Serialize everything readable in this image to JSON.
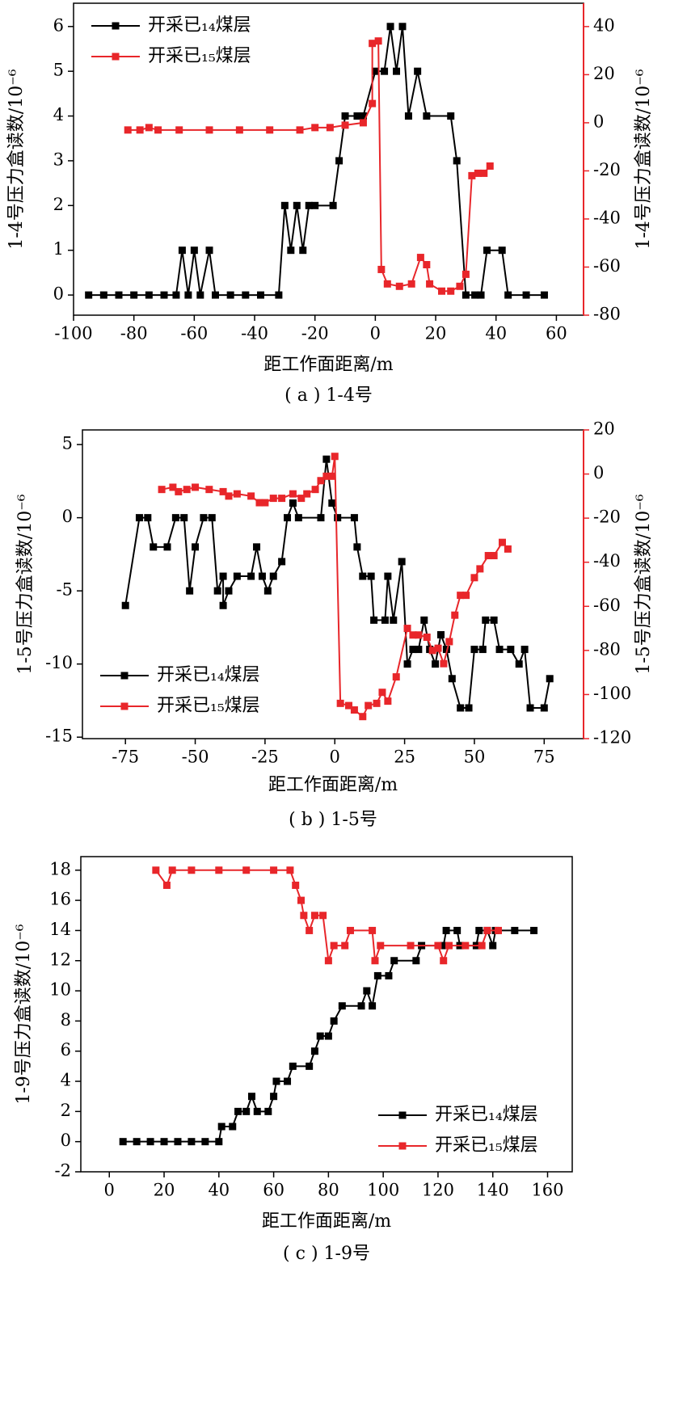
{
  "chart_data": [
    {
      "type": "line",
      "caption": "( a ) 1-4号",
      "xlabel": "距工作面距离/m",
      "ylabel": "1-4号压力盒读数/10⁻⁶",
      "y2label": "1-4号压力盒读数/10⁻⁶",
      "xlim": [
        -100,
        69
      ],
      "xticks": [
        -100,
        -80,
        -60,
        -40,
        -20,
        0,
        20,
        40,
        60
      ],
      "ylim": [
        -0.45,
        6.52
      ],
      "yticks": [
        0,
        1,
        2,
        3,
        4,
        5,
        6
      ],
      "y2lim": [
        -80,
        49.7
      ],
      "y2ticks": [
        -80,
        -60,
        -40,
        -20,
        0,
        20,
        40
      ],
      "y2color": "#e8262a",
      "legend": "upper left",
      "series": [
        {
          "name": "开采已₁₄煤层",
          "color": "#000000",
          "x": [
            -95,
            -90,
            -85,
            -80,
            -75,
            -70,
            -66,
            -64,
            -62,
            -60,
            -58,
            -55,
            -53,
            -48,
            -43,
            -38,
            -32,
            -30,
            -28,
            -26,
            -24,
            -22,
            -20,
            -14,
            -12,
            -10,
            -6,
            -4,
            0,
            3,
            5,
            7,
            9,
            11,
            14,
            17,
            25,
            27,
            30,
            33,
            35,
            37,
            42,
            44,
            50,
            56
          ],
          "values": [
            0,
            0,
            0,
            0,
            0,
            0,
            0,
            1,
            0,
            1,
            0,
            1,
            0,
            0,
            0,
            0,
            0,
            2,
            1,
            2,
            1,
            2,
            2,
            2,
            3,
            4,
            4,
            4,
            5,
            5,
            6,
            5,
            6,
            4,
            5,
            4,
            4,
            3,
            0,
            0,
            0,
            1,
            1,
            0,
            0,
            0
          ]
        },
        {
          "name": "开采已₁₅煤层",
          "color": "#e8262a",
          "axis": "y2",
          "x": [
            -82,
            -78,
            -75,
            -72,
            -65,
            -55,
            -45,
            -35,
            -25,
            -20,
            -15,
            -10,
            -4,
            -1,
            -1,
            1,
            2,
            4,
            8,
            12,
            15,
            17,
            18,
            22,
            25,
            28,
            30,
            32,
            34,
            36,
            38
          ],
          "values": [
            -3,
            -3,
            -2,
            -3,
            -3,
            -3,
            -3,
            -3,
            -3,
            -2,
            -2,
            -1,
            0,
            8,
            33,
            34,
            -61,
            -67,
            -68,
            -67,
            -56,
            -59,
            -67,
            -70,
            -70,
            -68,
            -63,
            -22,
            -21,
            -21,
            -18
          ]
        }
      ]
    },
    {
      "type": "line",
      "caption": "( b ) 1-5号",
      "xlabel": "距工作面距离/m",
      "ylabel": "1-5号压力盒读数/10⁻⁶",
      "y2label": "1-5号压力盒读数/10⁻⁶",
      "xlim": [
        -90.4,
        89.1
      ],
      "xticks": [
        -75,
        -50,
        -25,
        0,
        25,
        50,
        75
      ],
      "ylim": [
        -15.1,
        6
      ],
      "yticks": [
        -15,
        -10,
        -5,
        0,
        5
      ],
      "y2lim": [
        -120,
        20
      ],
      "y2ticks": [
        -120,
        -100,
        -80,
        -60,
        -40,
        -20,
        0,
        20
      ],
      "y2color": "#e8262a",
      "legend": "lower left",
      "series": [
        {
          "name": "开采已₁₄煤层",
          "color": "#000000",
          "x": [
            -75,
            -70,
            -67,
            -65,
            -60,
            -57,
            -54,
            -52,
            -50,
            -47,
            -44,
            -42,
            -40,
            -40,
            -38,
            -35,
            -30,
            -28,
            -26,
            -24,
            -22,
            -19,
            -17,
            -15,
            -13,
            -5,
            -3,
            -1,
            1,
            7,
            8,
            10,
            13,
            14,
            18,
            19,
            21,
            24,
            26,
            28,
            30,
            32,
            34,
            36,
            38,
            40,
            42,
            45,
            48,
            50,
            53,
            54,
            57,
            59,
            63,
            66,
            68,
            70,
            75,
            77
          ],
          "values": [
            -6,
            0,
            0,
            -2,
            -2,
            0,
            0,
            -5,
            -2,
            0,
            0,
            -5,
            -4,
            -6,
            -5,
            -4,
            -4,
            -2,
            -4,
            -5,
            -4,
            -3,
            0,
            1,
            0,
            0,
            4,
            1,
            0,
            0,
            -2,
            -4,
            -4,
            -7,
            -7,
            -4,
            -7,
            -3,
            -10,
            -9,
            -9,
            -7,
            -9,
            -10,
            -8,
            -9,
            -11,
            -13,
            -13,
            -9,
            -9,
            -7,
            -7,
            -9,
            -9,
            -10,
            -9,
            -13,
            -13,
            -11
          ]
        },
        {
          "name": "开采已₁₅煤层",
          "color": "#e8262a",
          "axis": "y2",
          "x": [
            -62,
            -58,
            -56,
            -53,
            -50,
            -45,
            -40,
            -38,
            -35,
            -30,
            -27,
            -25,
            -22,
            -19,
            -15,
            -12,
            -10,
            -7,
            -5,
            -3,
            -1,
            0,
            2,
            5,
            7,
            10,
            12,
            15,
            17,
            19,
            22,
            26,
            28,
            30,
            33,
            35,
            37,
            39,
            41,
            43,
            45,
            47,
            50,
            52,
            55,
            57,
            60,
            62
          ],
          "values": [
            -7,
            -6,
            -8,
            -7,
            -6,
            -7,
            -8,
            -10,
            -9,
            -10,
            -13,
            -13,
            -11,
            -11,
            -9,
            -11,
            -9,
            -7,
            -3,
            -1,
            -1,
            8,
            -104,
            -105,
            -107,
            -110,
            -105,
            -104,
            -99,
            -103,
            -92,
            -70,
            -73,
            -73,
            -74,
            -80,
            -79,
            -86,
            -76,
            -64,
            -55,
            -55,
            -47,
            -43,
            -37,
            -37,
            -31,
            -34
          ]
        }
      ]
    },
    {
      "type": "line",
      "caption": "( c ) 1-9号",
      "xlabel": "距工作面距离/m",
      "ylabel": "1-9号压力盒读数/10⁻⁶",
      "xlim": [
        -10.4,
        169
      ],
      "xticks": [
        0,
        20,
        40,
        60,
        80,
        100,
        120,
        140,
        160
      ],
      "ylim": [
        -2,
        18.9
      ],
      "yticks": [
        -2,
        0,
        2,
        4,
        6,
        8,
        10,
        12,
        14,
        16,
        18
      ],
      "legend": "lower right",
      "series": [
        {
          "name": "开采已₁₄煤层",
          "color": "#000000",
          "x": [
            5,
            10,
            15,
            20,
            25,
            30,
            35,
            40,
            41,
            45,
            47,
            50,
            52,
            54,
            58,
            60,
            61,
            65,
            67,
            73,
            75,
            77,
            80,
            82,
            85,
            92,
            94,
            96,
            98,
            102,
            104,
            112,
            114,
            122,
            123,
            127,
            128,
            134,
            135,
            138,
            140,
            141,
            148,
            155
          ],
          "values": [
            0,
            0,
            0,
            0,
            0,
            0,
            0,
            0,
            1,
            1,
            2,
            2,
            3,
            2,
            2,
            3,
            4,
            4,
            5,
            5,
            6,
            7,
            7,
            8,
            9,
            9,
            10,
            9,
            11,
            11,
            12,
            12,
            13,
            13,
            14,
            14,
            13,
            13,
            14,
            14,
            13,
            14,
            14,
            14
          ]
        },
        {
          "name": "开采已₁₅煤层",
          "color": "#e8262a",
          "x": [
            17,
            21,
            23,
            30,
            40,
            50,
            60,
            66,
            68,
            70,
            71,
            73,
            75,
            78,
            80,
            82,
            86,
            88,
            96,
            97,
            99,
            110,
            120,
            122,
            124,
            130,
            136,
            138,
            142
          ],
          "values": [
            18,
            17,
            18,
            18,
            18,
            18,
            18,
            18,
            17,
            16,
            15,
            14,
            15,
            15,
            12,
            13,
            13,
            14,
            14,
            12,
            13,
            13,
            13,
            12,
            13,
            13,
            13,
            14,
            14
          ]
        }
      ]
    }
  ]
}
